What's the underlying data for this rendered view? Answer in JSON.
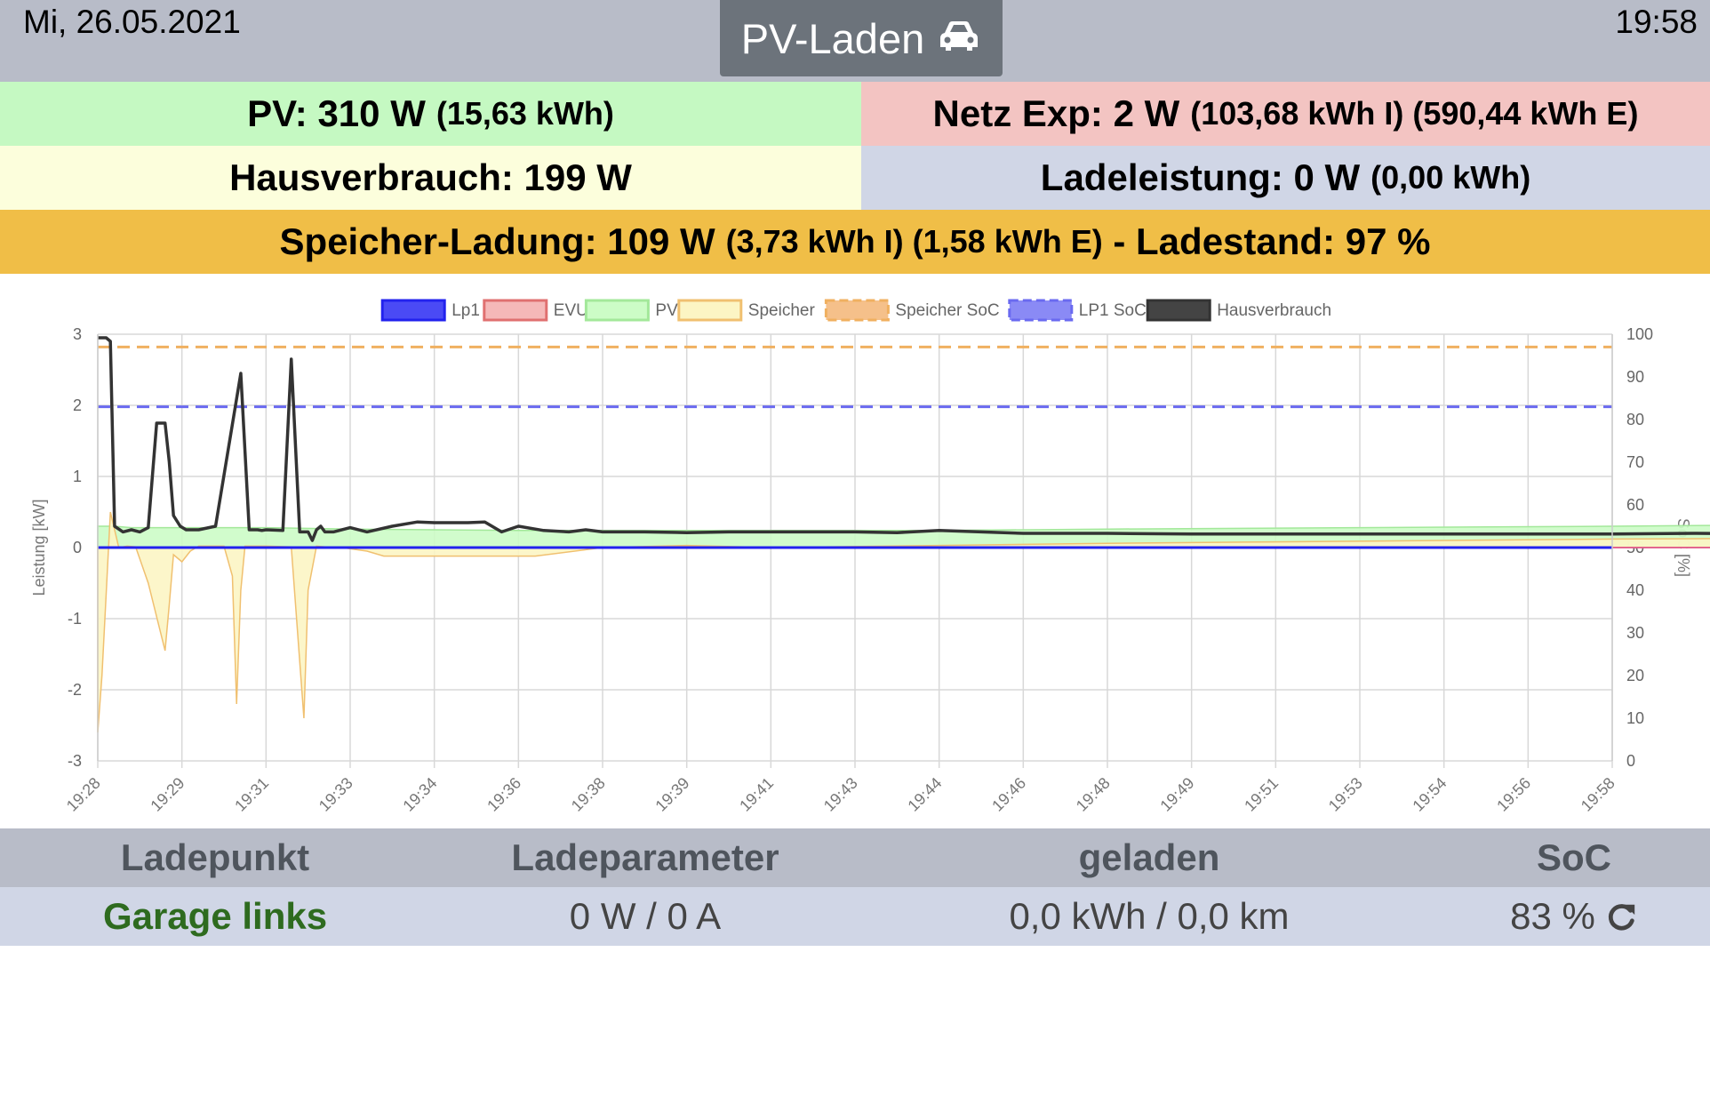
{
  "header": {
    "date": "Mi, 26.05.2021",
    "time": "19:58",
    "mode_label": "PV-Laden",
    "mode_icon": "car-icon"
  },
  "status": {
    "pv_main": "PV: 310 W",
    "pv_sub": "(15,63 kWh)",
    "netz_main": "Netz Exp: 2 W",
    "netz_sub": "(103,68 kWh I) (590,44 kWh E)",
    "haus_main": "Hausverbrauch: 199 W",
    "lade_main": "Ladeleistung: 0 W",
    "lade_sub": "(0,00 kWh)",
    "speicher_main": "Speicher-Ladung: 109 W",
    "speicher_sub": "(3,73 kWh I) (1,58 kWh E)",
    "speicher_tail": " - Ladestand: 97 %",
    "colors": {
      "pv": "#c5f9c2",
      "netz": "#f3c4c2",
      "haus": "#fcfedc",
      "lade": "#d0d6e6",
      "speicher": "#f0be47"
    }
  },
  "chart_data": {
    "type": "line",
    "ylabel_left": "Leistung [kW]",
    "ylabel_right": "SoC [%]",
    "ylim_left": [
      -3,
      3
    ],
    "ylim_right": [
      0,
      100
    ],
    "y_ticks_left": [
      "3",
      "2",
      "1",
      "0",
      "-1",
      "-2",
      "-3"
    ],
    "y_ticks_right": [
      "100",
      "90",
      "80",
      "70",
      "60",
      "50",
      "40",
      "30",
      "20",
      "10",
      "0"
    ],
    "x_ticks": [
      "19:28",
      "19:29",
      "19:31",
      "19:33",
      "19:34",
      "19:36",
      "19:38",
      "19:39",
      "19:41",
      "19:43",
      "19:44",
      "19:46",
      "19:48",
      "19:49",
      "19:51",
      "19:53",
      "19:54",
      "19:56",
      "19:58"
    ],
    "grid": true,
    "legend_position": "top",
    "legend": [
      {
        "name": "Lp1",
        "color": "#2222ee",
        "fill": "#4a4af5",
        "dashed": false
      },
      {
        "name": "EVU",
        "color": "#e07070",
        "fill": "#f5b8b8",
        "dashed": false
      },
      {
        "name": "PV",
        "color": "#a3e89a",
        "fill": "#ccfcc6",
        "dashed": false
      },
      {
        "name": "Speicher",
        "color": "#f0c070",
        "fill": "#fcf5c4",
        "dashed": false
      },
      {
        "name": "Speicher SoC",
        "color": "#f0b060",
        "fill": "#f5c08a",
        "dashed": true
      },
      {
        "name": "LP1 SoC",
        "color": "#6a6af0",
        "fill": "#8a8af5",
        "dashed": true
      },
      {
        "name": "Hausverbrauch",
        "color": "#333333",
        "fill": "#444444",
        "dashed": false
      }
    ],
    "series": [
      {
        "name": "Speicher SoC",
        "axis": "right",
        "values": [
          97,
          97
        ]
      },
      {
        "name": "LP1 SoC",
        "axis": "right",
        "values": [
          83,
          83
        ]
      },
      {
        "name": "Lp1",
        "axis": "left",
        "values": [
          0,
          0
        ]
      },
      {
        "name": "Hausverbrauch",
        "axis": "left",
        "x": [
          0,
          0.1,
          0.15,
          0.2,
          0.3,
          0.4,
          0.5,
          0.6,
          0.7,
          0.8,
          0.85,
          0.9,
          0.98,
          1.05,
          1.1,
          1.2,
          1.4,
          1.7,
          1.8,
          1.85,
          1.9,
          1.95,
          2.0,
          2.2,
          2.3,
          2.4,
          2.5,
          2.55,
          2.6,
          2.65,
          2.7,
          2.8,
          3.0,
          3.2,
          3.5,
          3.8,
          4.0,
          4.2,
          4.4,
          4.6,
          4.8,
          5.0,
          5.3,
          5.6,
          5.8,
          6.0,
          6.5,
          7.0,
          7.5,
          8.0,
          8.5,
          9.0,
          9.5,
          10.0,
          11.0,
          12.0,
          13.0,
          14.0,
          15.0,
          16.0,
          17.0,
          18.0,
          19.0,
          20.0,
          20.4,
          20.6,
          21.0,
          22.0,
          23.0,
          24.0,
          25.0,
          26.0,
          27.0,
          28.0,
          29.0,
          30.0
        ],
        "values": [
          2.95,
          2.95,
          2.9,
          0.3,
          0.22,
          0.25,
          0.22,
          0.28,
          1.75,
          1.75,
          1.2,
          0.45,
          0.3,
          0.25,
          0.25,
          0.25,
          0.3,
          2.45,
          0.25,
          0.25,
          0.25,
          0.24,
          0.25,
          0.24,
          2.65,
          0.22,
          0.22,
          0.1,
          0.25,
          0.3,
          0.22,
          0.22,
          0.28,
          0.22,
          0.3,
          0.36,
          0.35,
          0.35,
          0.35,
          0.36,
          0.22,
          0.3,
          0.24,
          0.22,
          0.25,
          0.22,
          0.22,
          0.21,
          0.22,
          0.22,
          0.22,
          0.22,
          0.21,
          0.24,
          0.2,
          0.2,
          0.19,
          0.19,
          0.19,
          0.19,
          0.19,
          0.19,
          0.2,
          0.19,
          0.26,
          0.19,
          0.19,
          0.19,
          0.19,
          0.19,
          0.19,
          0.19,
          0.19,
          0.19,
          0.19,
          0.2
        ]
      },
      {
        "name": "PV",
        "axis": "left",
        "x": [
          0,
          0.2,
          0.4,
          0.6,
          0.8,
          1.0,
          1.2,
          2.0,
          3.0,
          5.0,
          8.0,
          10.0,
          12.0,
          15.0,
          18.0,
          20.0,
          22.0,
          25.0,
          28.0,
          30.0
        ],
        "values": [
          0.3,
          0.3,
          0.28,
          0.28,
          0.28,
          0.28,
          0.28,
          0.28,
          0.26,
          0.24,
          0.24,
          0.24,
          0.26,
          0.28,
          0.3,
          0.32,
          0.32,
          0.32,
          0.32,
          0.31
        ]
      },
      {
        "name": "Speicher",
        "axis": "left",
        "x": [
          0,
          0.05,
          0.15,
          0.25,
          0.35,
          0.45,
          0.6,
          0.8,
          0.85,
          0.9,
          1.0,
          1.1,
          1.2,
          1.5,
          1.6,
          1.65,
          1.7,
          1.75,
          1.8,
          2.0,
          2.3,
          2.45,
          2.5,
          2.6,
          2.7,
          2.9,
          3.2,
          3.4,
          3.6,
          4.2,
          4.8,
          5.2,
          6.0,
          7.0,
          8.0,
          10.0,
          12.0,
          14.0,
          16.0,
          18.0,
          20.0,
          21.0,
          23.0,
          25.0,
          27.0,
          29.0,
          30.0
        ],
        "values": [
          -2.6,
          -1.8,
          0.5,
          0.0,
          0.02,
          0.01,
          -0.5,
          -1.45,
          -0.8,
          -0.1,
          -0.2,
          -0.05,
          0.02,
          0.02,
          -0.4,
          -2.2,
          -0.6,
          0.02,
          0.02,
          0.02,
          0.01,
          -2.4,
          -0.6,
          0.02,
          0.01,
          0.0,
          -0.05,
          -0.12,
          -0.12,
          -0.12,
          -0.12,
          -0.12,
          0.0,
          0.03,
          0.0,
          0.03,
          0.06,
          0.08,
          0.1,
          0.12,
          0.13,
          0.08,
          0.1,
          0.1,
          0.1,
          0.1,
          0.11
        ]
      },
      {
        "name": "EVU",
        "axis": "left",
        "x": [
          0,
          21.5,
          21.7,
          21.9,
          30.0
        ],
        "values": [
          0,
          0,
          -0.08,
          0,
          0
        ]
      }
    ]
  },
  "table": {
    "headers": [
      "Ladepunkt",
      "Ladeparameter",
      "geladen",
      "SoC"
    ],
    "row": {
      "name": "Garage links",
      "param": "0 W / 0 A",
      "charged": "0,0 kWh / 0,0 km",
      "soc": "83 %",
      "soc_icon": "refresh-icon",
      "name_color": "#2e6b1f"
    }
  }
}
